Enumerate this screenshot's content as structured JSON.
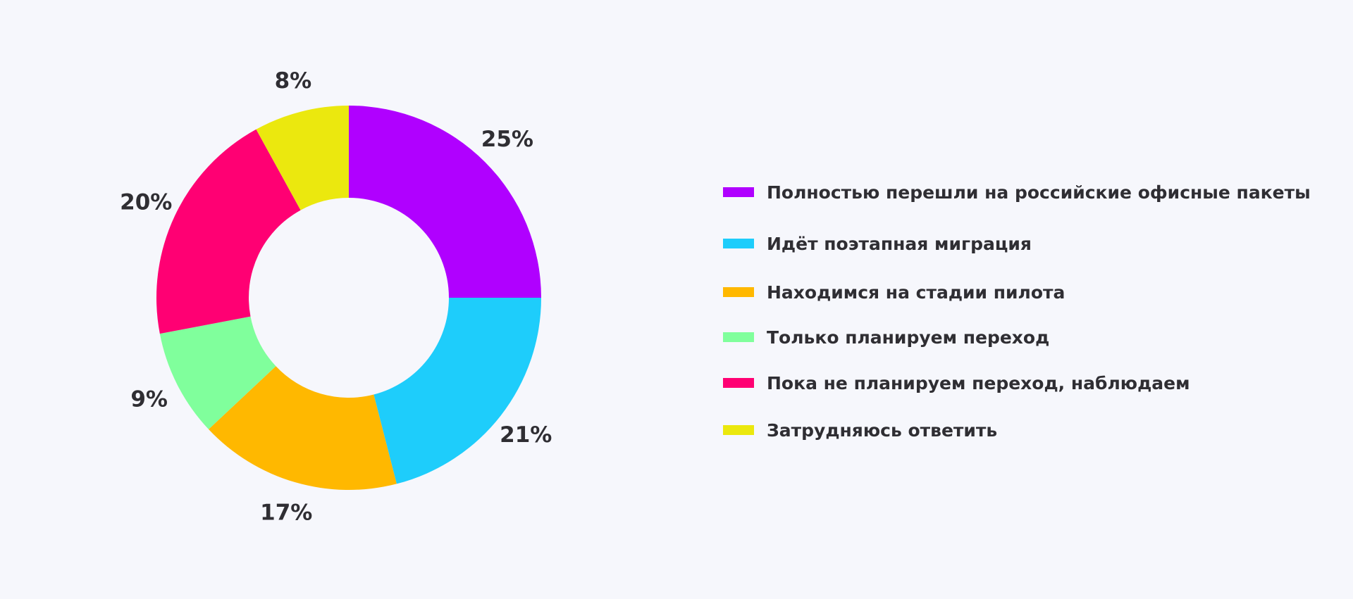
{
  "chart_data": {
    "type": "pie",
    "variant": "donut",
    "title": "",
    "categories": [
      "Полностью перешли на российские офисные пакеты",
      "Идёт поэтапная миграция",
      "Находимся на стадии пилота",
      "Только планируем переход",
      "Пока не планируем переход, наблюдаем",
      "Затрудняюсь ответить"
    ],
    "values": [
      25,
      21,
      17,
      9,
      20,
      8
    ],
    "value_labels": [
      "25%",
      "21%",
      "17%",
      "9%",
      "20%",
      "8%"
    ],
    "colors": [
      "#b000ff",
      "#1ecdfb",
      "#ffb800",
      "#80ff9c",
      "#ff0073",
      "#ebe80e"
    ],
    "legend_position": "right",
    "start_angle": "top",
    "direction": "clockwise"
  }
}
